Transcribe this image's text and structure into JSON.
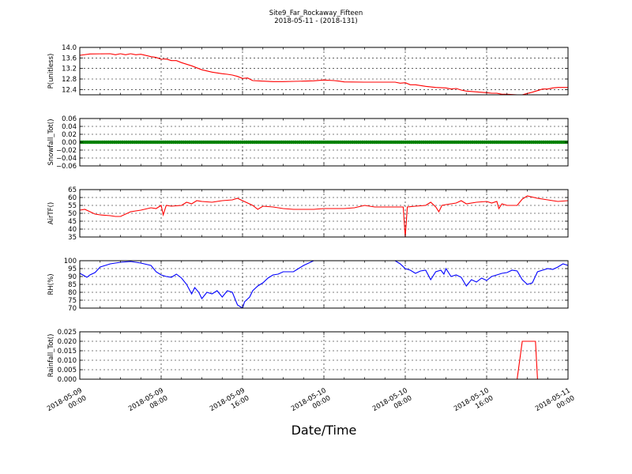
{
  "figure": {
    "title": "Site9_Far_Rockaway_Fifteen",
    "subtitle": "2018-05-11 - (2018-131)",
    "xlabel": "Date/Time"
  },
  "chart_data": {
    "type": "line",
    "x_range": [
      "2018-05-09 00:00",
      "2018-05-11 00:00"
    ],
    "x_ticks": [
      {
        "line1": "2018-05-09",
        "line2": "00:00",
        "hour": 0
      },
      {
        "line1": "2018-05-09",
        "line2": "08:00",
        "hour": 8
      },
      {
        "line1": "2018-05-09",
        "line2": "16:00",
        "hour": 16
      },
      {
        "line1": "2018-05-10",
        "line2": "00:00",
        "hour": 24
      },
      {
        "line1": "2018-05-10",
        "line2": "08:00",
        "hour": 32
      },
      {
        "line1": "2018-05-10",
        "line2": "16:00",
        "hour": 40
      },
      {
        "line1": "2018-05-11",
        "line2": "00:00",
        "hour": 48
      }
    ],
    "grid": true,
    "panels": [
      {
        "ylabel": "P(unitless)",
        "ylim": [
          12.2,
          14.0
        ],
        "yticks": [
          "14.0",
          "13.6",
          "13.2",
          "12.8",
          "12.4"
        ],
        "ytick_values": [
          14.0,
          13.6,
          13.2,
          12.8,
          12.4
        ],
        "color": "#ff0000",
        "markers": false,
        "points": [
          [
            0,
            13.7
          ],
          [
            1,
            13.75
          ],
          [
            3,
            13.76
          ],
          [
            3.5,
            13.72
          ],
          [
            4,
            13.76
          ],
          [
            4.5,
            13.72
          ],
          [
            5,
            13.76
          ],
          [
            5.5,
            13.72
          ],
          [
            6,
            13.74
          ],
          [
            7,
            13.65
          ],
          [
            7.5,
            13.62
          ],
          [
            8,
            13.55
          ],
          [
            8.5,
            13.56
          ],
          [
            9,
            13.5
          ],
          [
            9.5,
            13.5
          ],
          [
            10,
            13.42
          ],
          [
            11,
            13.3
          ],
          [
            12,
            13.15
          ],
          [
            13,
            13.06
          ],
          [
            14,
            13.0
          ],
          [
            14.5,
            12.98
          ],
          [
            15,
            12.95
          ],
          [
            15.5,
            12.9
          ],
          [
            16,
            12.82
          ],
          [
            16.5,
            12.84
          ],
          [
            17,
            12.74
          ],
          [
            18,
            12.72
          ],
          [
            19,
            12.7
          ],
          [
            20,
            12.7
          ],
          [
            21,
            12.71
          ],
          [
            22,
            12.72
          ],
          [
            23,
            12.73
          ],
          [
            24,
            12.76
          ],
          [
            25,
            12.74
          ],
          [
            25.5,
            12.72
          ],
          [
            26,
            12.69
          ],
          [
            28,
            12.68
          ],
          [
            30,
            12.68
          ],
          [
            31,
            12.68
          ],
          [
            31.5,
            12.64
          ],
          [
            32,
            12.66
          ],
          [
            32.5,
            12.58
          ],
          [
            33,
            12.58
          ],
          [
            34,
            12.52
          ],
          [
            35,
            12.48
          ],
          [
            36,
            12.46
          ],
          [
            36.5,
            12.42
          ],
          [
            37,
            12.44
          ],
          [
            37.5,
            12.38
          ],
          [
            38,
            12.34
          ],
          [
            39,
            12.31
          ],
          [
            40,
            12.28
          ],
          [
            40.5,
            12.26
          ],
          [
            41,
            12.26
          ],
          [
            41.5,
            12.22
          ],
          [
            42,
            12.22
          ],
          [
            43,
            12.2
          ],
          [
            43.5,
            12.2
          ],
          [
            44,
            12.25
          ],
          [
            44.5,
            12.3
          ],
          [
            45,
            12.36
          ],
          [
            45.5,
            12.42
          ],
          [
            46,
            12.42
          ],
          [
            46.5,
            12.46
          ],
          [
            47,
            12.48
          ],
          [
            48,
            12.48
          ]
        ]
      },
      {
        "ylabel": "Snowfall_Tot()",
        "ylim": [
          -0.06,
          0.06
        ],
        "yticks": [
          "0.06",
          "0.04",
          "0.02",
          "0.00",
          "−0.02",
          "−0.04",
          "−0.06"
        ],
        "ytick_values": [
          0.06,
          0.04,
          0.02,
          0.0,
          -0.02,
          -0.04,
          -0.06
        ],
        "color": "#008000",
        "markers": true,
        "constant": 0.0
      },
      {
        "ylabel": "AirTF()",
        "ylim": [
          35,
          65
        ],
        "yticks": [
          "65",
          "60",
          "55",
          "50",
          "45",
          "40",
          "35"
        ],
        "ytick_values": [
          65,
          60,
          55,
          50,
          45,
          40,
          35
        ],
        "color": "#ff0000",
        "markers": false,
        "points": [
          [
            0,
            52
          ],
          [
            0.5,
            52.5
          ],
          [
            1,
            51
          ],
          [
            1.5,
            49.5
          ],
          [
            2,
            49
          ],
          [
            3,
            48.5
          ],
          [
            3.5,
            48
          ],
          [
            4,
            48
          ],
          [
            5,
            51
          ],
          [
            6,
            52
          ],
          [
            7,
            53.5
          ],
          [
            7.5,
            53
          ],
          [
            8,
            55
          ],
          [
            8.2,
            49
          ],
          [
            8.5,
            55
          ],
          [
            9,
            54.5
          ],
          [
            10,
            55
          ],
          [
            10.5,
            57
          ],
          [
            11,
            56
          ],
          [
            11.5,
            58
          ],
          [
            12,
            57.5
          ],
          [
            13,
            57
          ],
          [
            14,
            58
          ],
          [
            15,
            58.5
          ],
          [
            15.5,
            59.5
          ],
          [
            16,
            58
          ],
          [
            17,
            55
          ],
          [
            17.5,
            52.5
          ],
          [
            18,
            54.5
          ],
          [
            19,
            54
          ],
          [
            20,
            53
          ],
          [
            21,
            52.5
          ],
          [
            22,
            52.5
          ],
          [
            23,
            52.5
          ],
          [
            24,
            53
          ],
          [
            25,
            53
          ],
          [
            26,
            53
          ],
          [
            27,
            53.5
          ],
          [
            28,
            55
          ],
          [
            29,
            54
          ],
          [
            30,
            54
          ],
          [
            31,
            54
          ],
          [
            31.8,
            54
          ],
          [
            32,
            35
          ],
          [
            32.2,
            54
          ],
          [
            33,
            54.5
          ],
          [
            34,
            55
          ],
          [
            34.5,
            57
          ],
          [
            35,
            54
          ],
          [
            35.3,
            51
          ],
          [
            35.6,
            55
          ],
          [
            36,
            55.5
          ],
          [
            37,
            56.5
          ],
          [
            37.5,
            58
          ],
          [
            38,
            56
          ],
          [
            39,
            57
          ],
          [
            40,
            57.5
          ],
          [
            40.5,
            56.5
          ],
          [
            41,
            57.5
          ],
          [
            41.2,
            53
          ],
          [
            41.5,
            56
          ],
          [
            42,
            55
          ],
          [
            43,
            55
          ],
          [
            43.5,
            59
          ],
          [
            44,
            61
          ],
          [
            45,
            59.5
          ],
          [
            46,
            58.5
          ],
          [
            47,
            57.5
          ],
          [
            48,
            58
          ]
        ]
      },
      {
        "ylabel": "RH(%)",
        "ylim": [
          70,
          100
        ],
        "yticks": [
          "100",
          "95",
          "90",
          "85",
          "80",
          "75",
          "70"
        ],
        "ytick_values": [
          100,
          95,
          90,
          85,
          80,
          75,
          70
        ],
        "color": "#0000ff",
        "markers": false,
        "points": [
          [
            0,
            92
          ],
          [
            0.3,
            91
          ],
          [
            0.7,
            89.5
          ],
          [
            1,
            91
          ],
          [
            1.5,
            92.5
          ],
          [
            2,
            96
          ],
          [
            3,
            98
          ],
          [
            4,
            99
          ],
          [
            5,
            99.5
          ],
          [
            6,
            98.5
          ],
          [
            7,
            97
          ],
          [
            7.5,
            93
          ],
          [
            8,
            91
          ],
          [
            8.5,
            90
          ],
          [
            9,
            89.5
          ],
          [
            9.5,
            91.5
          ],
          [
            10,
            89
          ],
          [
            10.5,
            85
          ],
          [
            11,
            79
          ],
          [
            11.3,
            83
          ],
          [
            11.7,
            80
          ],
          [
            12,
            76
          ],
          [
            12.5,
            80
          ],
          [
            13,
            79
          ],
          [
            13.5,
            81
          ],
          [
            14,
            77
          ],
          [
            14.5,
            81
          ],
          [
            15,
            80
          ],
          [
            15.5,
            72
          ],
          [
            16,
            70
          ],
          [
            16.2,
            74
          ],
          [
            16.7,
            77
          ],
          [
            17,
            81
          ],
          [
            17.5,
            84
          ],
          [
            18,
            86
          ],
          [
            18.5,
            89
          ],
          [
            19,
            91
          ],
          [
            19.5,
            91.5
          ],
          [
            20,
            93
          ],
          [
            21,
            93
          ],
          [
            21.5,
            95
          ],
          [
            22,
            97
          ],
          [
            22.5,
            98.5
          ],
          [
            23,
            100
          ],
          [
            31,
            100
          ],
          [
            31.5,
            98
          ],
          [
            32,
            95
          ],
          [
            32.5,
            94
          ],
          [
            33,
            92
          ],
          [
            33.5,
            93.5
          ],
          [
            34,
            94
          ],
          [
            34.5,
            88
          ],
          [
            35,
            93
          ],
          [
            35.5,
            94
          ],
          [
            35.8,
            91.5
          ],
          [
            36,
            95
          ],
          [
            36.5,
            90
          ],
          [
            37,
            91
          ],
          [
            37.5,
            89.5
          ],
          [
            38,
            84
          ],
          [
            38.5,
            88
          ],
          [
            39,
            86.5
          ],
          [
            39.5,
            89
          ],
          [
            40,
            87.5
          ],
          [
            40.5,
            90
          ],
          [
            41,
            91
          ],
          [
            41.5,
            92
          ],
          [
            42,
            92.5
          ],
          [
            42.5,
            94
          ],
          [
            43,
            93.5
          ],
          [
            43.5,
            88
          ],
          [
            44,
            85
          ],
          [
            44.5,
            86
          ],
          [
            45,
            93
          ],
          [
            45.5,
            94
          ],
          [
            46,
            95
          ],
          [
            46.5,
            94.5
          ],
          [
            47,
            96
          ],
          [
            47.5,
            98
          ],
          [
            48,
            97
          ]
        ]
      },
      {
        "ylabel": "Rainfall_Tot()",
        "ylim": [
          0.0,
          0.025
        ],
        "yticks": [
          "0.025",
          "0.020",
          "0.015",
          "0.010",
          "0.005",
          "0.000"
        ],
        "ytick_values": [
          0.025,
          0.02,
          0.015,
          0.01,
          0.005,
          0.0
        ],
        "color": "#ff0000",
        "markers": false,
        "points": [
          [
            0,
            0
          ],
          [
            43,
            0
          ],
          [
            43.5,
            0.02
          ],
          [
            44.8,
            0.02
          ],
          [
            45,
            0.0
          ],
          [
            48,
            0.0
          ]
        ]
      }
    ]
  }
}
